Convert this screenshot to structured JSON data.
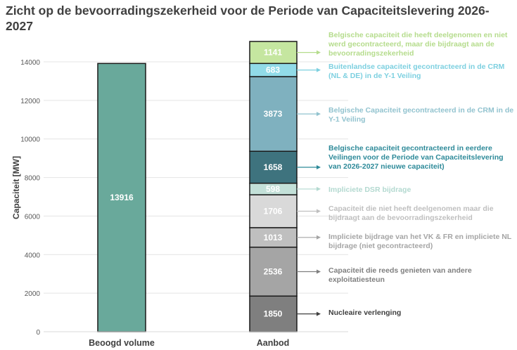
{
  "title": "Zicht op de bevoorradingszekerheid voor de Periode van Capaciteitslevering 2026-2027",
  "chart_data": {
    "type": "bar",
    "stacked": true,
    "title": "Zicht op de bevoorradingszekerheid voor de Periode van Capaciteitslevering 2026-2027",
    "xlabel": "",
    "ylabel": "Capaciteit [MW]",
    "ylim": [
      0,
      16000
    ],
    "yticks": [
      0,
      2000,
      4000,
      6000,
      8000,
      10000,
      12000,
      14000
    ],
    "grid": true,
    "categories": [
      "Beoogd volume",
      "Aanbod"
    ],
    "required": {
      "category": "Beoogd volume",
      "value": 13916,
      "color": "#69a99b"
    },
    "series": [
      {
        "name": "Nucleaire verlenging",
        "value": 1850,
        "color": "#7f7f7f",
        "label_color": "#404040"
      },
      {
        "name": "Capaciteit die reeds genieten van andere exploitatiesteun",
        "value": 2536,
        "color": "#a5a5a5",
        "label_color": "#7f7f7f"
      },
      {
        "name": "Impliciete bijdrage van het VK & FR en impliciete NL bijdrage (niet gecontracteerd)",
        "value": 1013,
        "color": "#bfbfbf",
        "label_color": "#a5a5a5"
      },
      {
        "name": "Capaciteit die niet heeft deelgenomen maar die bijdraagt aan de bevoorradingszekerheid",
        "value": 1706,
        "color": "#d9d9d9",
        "label_color": "#bfbfbf"
      },
      {
        "name": "Impliciete DSR bijdrage",
        "value": 598,
        "color": "#c3e0d8",
        "label_color": "#b3d9d0"
      },
      {
        "name": "Belgische capaciteit gecontracteerd in eerdere Veilingen voor de Periode van Capaciteitslevering van 2026-2027 nieuwe capaciteit)",
        "value": 1658,
        "color": "#3e737e",
        "label_color": "#2e8a99"
      },
      {
        "name": "Belgische Capaciteit gecontracteerd in de CRM in de Y-1 Veiling",
        "value": 3873,
        "color": "#7fb1bf",
        "label_color": "#92c3cf"
      },
      {
        "name": "Buitenlandse capaciteit gecontracteerd in de CRM (NL & DE) in de Y-1 Veiling",
        "value": 683,
        "color": "#91dbe8",
        "label_color": "#7dd0e0"
      },
      {
        "name": "Belgische capaciteit die heeft deelgenomen en niet werd gecontracteerd, maar die bijdraagt aan de bevoorradingszekerheid",
        "value": 1141,
        "color": "#c5e6a0",
        "label_color": "#b5dc8c"
      }
    ]
  }
}
